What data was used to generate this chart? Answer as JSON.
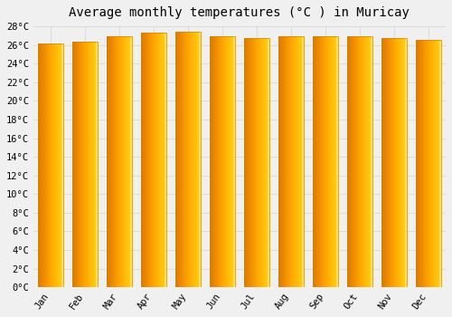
{
  "title": "Average monthly temperatures (°C ) in Muricay",
  "months": [
    "Jan",
    "Feb",
    "Mar",
    "Apr",
    "May",
    "Jun",
    "Jul",
    "Aug",
    "Sep",
    "Oct",
    "Nov",
    "Dec"
  ],
  "temperatures": [
    26.2,
    26.4,
    26.9,
    27.3,
    27.4,
    26.9,
    26.7,
    26.9,
    26.9,
    26.9,
    26.7,
    26.5
  ],
  "ylim": [
    0,
    28
  ],
  "yticks": [
    0,
    2,
    4,
    6,
    8,
    10,
    12,
    14,
    16,
    18,
    20,
    22,
    24,
    26,
    28
  ],
  "bar_color_left": "#E07800",
  "bar_color_mid": "#FFA500",
  "bar_color_right": "#FFD000",
  "bar_highlight_color": "#FFE566",
  "border_color": "#B8860B",
  "background_color": "#f0f0f0",
  "grid_color": "#d8d8d8",
  "title_fontsize": 10,
  "tick_fontsize": 7.5,
  "font_family": "monospace",
  "bar_width": 0.72
}
